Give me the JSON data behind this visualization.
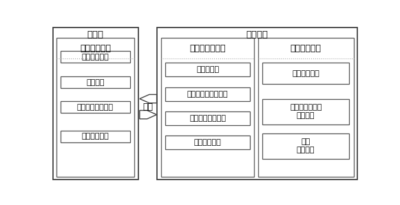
{
  "title_left": "客户端",
  "title_right": "云服务端",
  "left_box_title": "用户终端模块",
  "left_items": [
    "影像拍片系统",
    "诊断模块",
    "诊断请求发送系统",
    "终端打印系统"
  ],
  "mid_box_title": "云计算诊断系统",
  "mid_items": [
    "云存储系统",
    "计算机辅助检测模块",
    "单一专家诊断模块",
    "专家会诊模块"
  ],
  "right_box_title": "后台管理系统",
  "right_items": [
    "用户管理模块",
    "病例及影像资料\n管理模块",
    "日志\n管理模块"
  ],
  "arrow_label": "通信",
  "bg_color": "#ffffff",
  "outer_edge": "#333333",
  "inner_edge": "#666666",
  "item_edge": "#555555",
  "dashed_color": "#aaaaaa",
  "white_fill": "#ffffff",
  "gray_fill": "#cccccc",
  "text_color": "#000000",
  "bold_titles": [
    "用户终端模块",
    "云计算诊断系统",
    "后台管理系统"
  ],
  "font_title": 9.5,
  "font_section": 9,
  "font_item": 8
}
